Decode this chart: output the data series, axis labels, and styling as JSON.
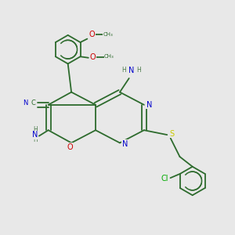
{
  "bg_color": "#e8e8e8",
  "bond_color": "#2d6b2d",
  "colors": {
    "C": "#2d6b2d",
    "N": "#0000cc",
    "O": "#cc0000",
    "S": "#cccc00",
    "Cl": "#00aa00",
    "H": "#4a7a4a",
    "label": "#0000cc"
  },
  "font_size": 7.0,
  "lw": 1.3
}
